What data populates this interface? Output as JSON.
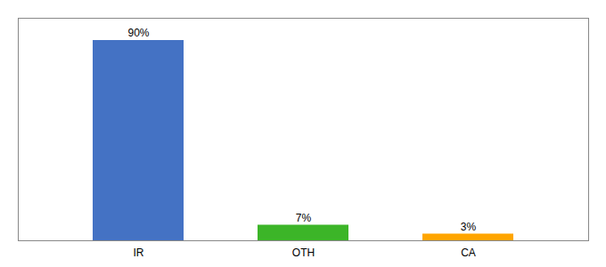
{
  "chart_data": {
    "type": "bar",
    "categories": [
      "IR",
      "OTH",
      "CA"
    ],
    "values": [
      90,
      7,
      3
    ],
    "value_labels": [
      "90%",
      "7%",
      "3%"
    ],
    "colors": [
      "#4472c4",
      "#3cb528",
      "#ffa500"
    ],
    "ylim": [
      0,
      100
    ],
    "data_labels": true,
    "tick_labels": "x",
    "grid": false
  }
}
